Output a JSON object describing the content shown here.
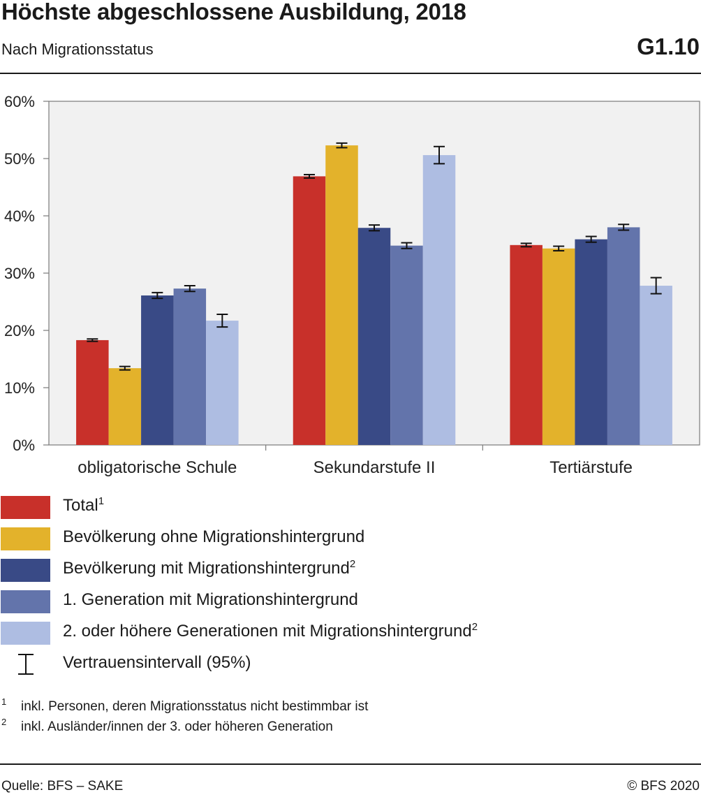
{
  "header": {
    "title": "Höchste abgeschlossene Ausbildung, 2018",
    "subtitle": "Nach Migrationsstatus",
    "code": "G1.10"
  },
  "chart_data": {
    "type": "bar",
    "categories": [
      "obligatorische Schule",
      "Sekundarstufe II",
      "Tertiärstufe"
    ],
    "y_ticks": [
      "0%",
      "10%",
      "20%",
      "30%",
      "40%",
      "50%",
      "60%"
    ],
    "ylim": [
      0,
      60
    ],
    "grid": false,
    "legend_placement": "bottom",
    "series": [
      {
        "name": "Total",
        "color": "#c8302a",
        "values": [
          18.3,
          46.9,
          34.9
        ],
        "ci_low": [
          18.1,
          46.6,
          34.6
        ],
        "ci_high": [
          18.5,
          47.2,
          35.2
        ]
      },
      {
        "name": "Bevölkerung ohne Migrationshintergrund",
        "color": "#e3b22b",
        "values": [
          13.4,
          52.3,
          34.3
        ],
        "ci_low": [
          13.1,
          51.9,
          33.9
        ],
        "ci_high": [
          13.7,
          52.7,
          34.7
        ]
      },
      {
        "name": "Bevölkerung mit Migrationshintergrund",
        "color": "#394a86",
        "values": [
          26.1,
          37.9,
          35.9
        ],
        "ci_low": [
          25.6,
          37.4,
          35.4
        ],
        "ci_high": [
          26.6,
          38.4,
          36.4
        ]
      },
      {
        "name": "1. Generation mit Migrationshintergrund",
        "color": "#6374ab",
        "values": [
          27.3,
          34.8,
          38.0
        ],
        "ci_low": [
          26.8,
          34.3,
          37.5
        ],
        "ci_high": [
          27.8,
          35.3,
          38.5
        ]
      },
      {
        "name": "2. oder höhere Generationen mit Migrationshintergrund",
        "color": "#aebde2",
        "values": [
          21.7,
          50.6,
          27.8
        ],
        "ci_low": [
          20.6,
          49.1,
          26.4
        ],
        "ci_high": [
          22.8,
          52.1,
          29.2
        ]
      }
    ]
  },
  "legend": {
    "items": [
      {
        "label": "Total",
        "sup": "1",
        "color": "#c8302a"
      },
      {
        "label": "Bevölkerung ohne Migrationshintergrund",
        "sup": "",
        "color": "#e3b22b"
      },
      {
        "label": "Bevölkerung mit Migrationshintergrund",
        "sup": "2",
        "color": "#394a86"
      },
      {
        "label": "1. Generation mit Migrationshintergrund",
        "sup": "",
        "color": "#6374ab"
      },
      {
        "label": "2. oder höhere Generationen mit Migrationshintergrund",
        "sup": "2",
        "color": "#aebde2"
      }
    ],
    "ci_label": "Vertrauensintervall (95%)"
  },
  "footnotes": [
    {
      "mark": "1",
      "text": "inkl. Personen, deren Migrationsstatus nicht bestimmbar ist"
    },
    {
      "mark": "2",
      "text": "inkl. Ausländer/innen der 3. oder höheren Generation"
    }
  ],
  "footer": {
    "source": "Quelle: BFS – SAKE",
    "copyright": "© BFS 2020"
  }
}
